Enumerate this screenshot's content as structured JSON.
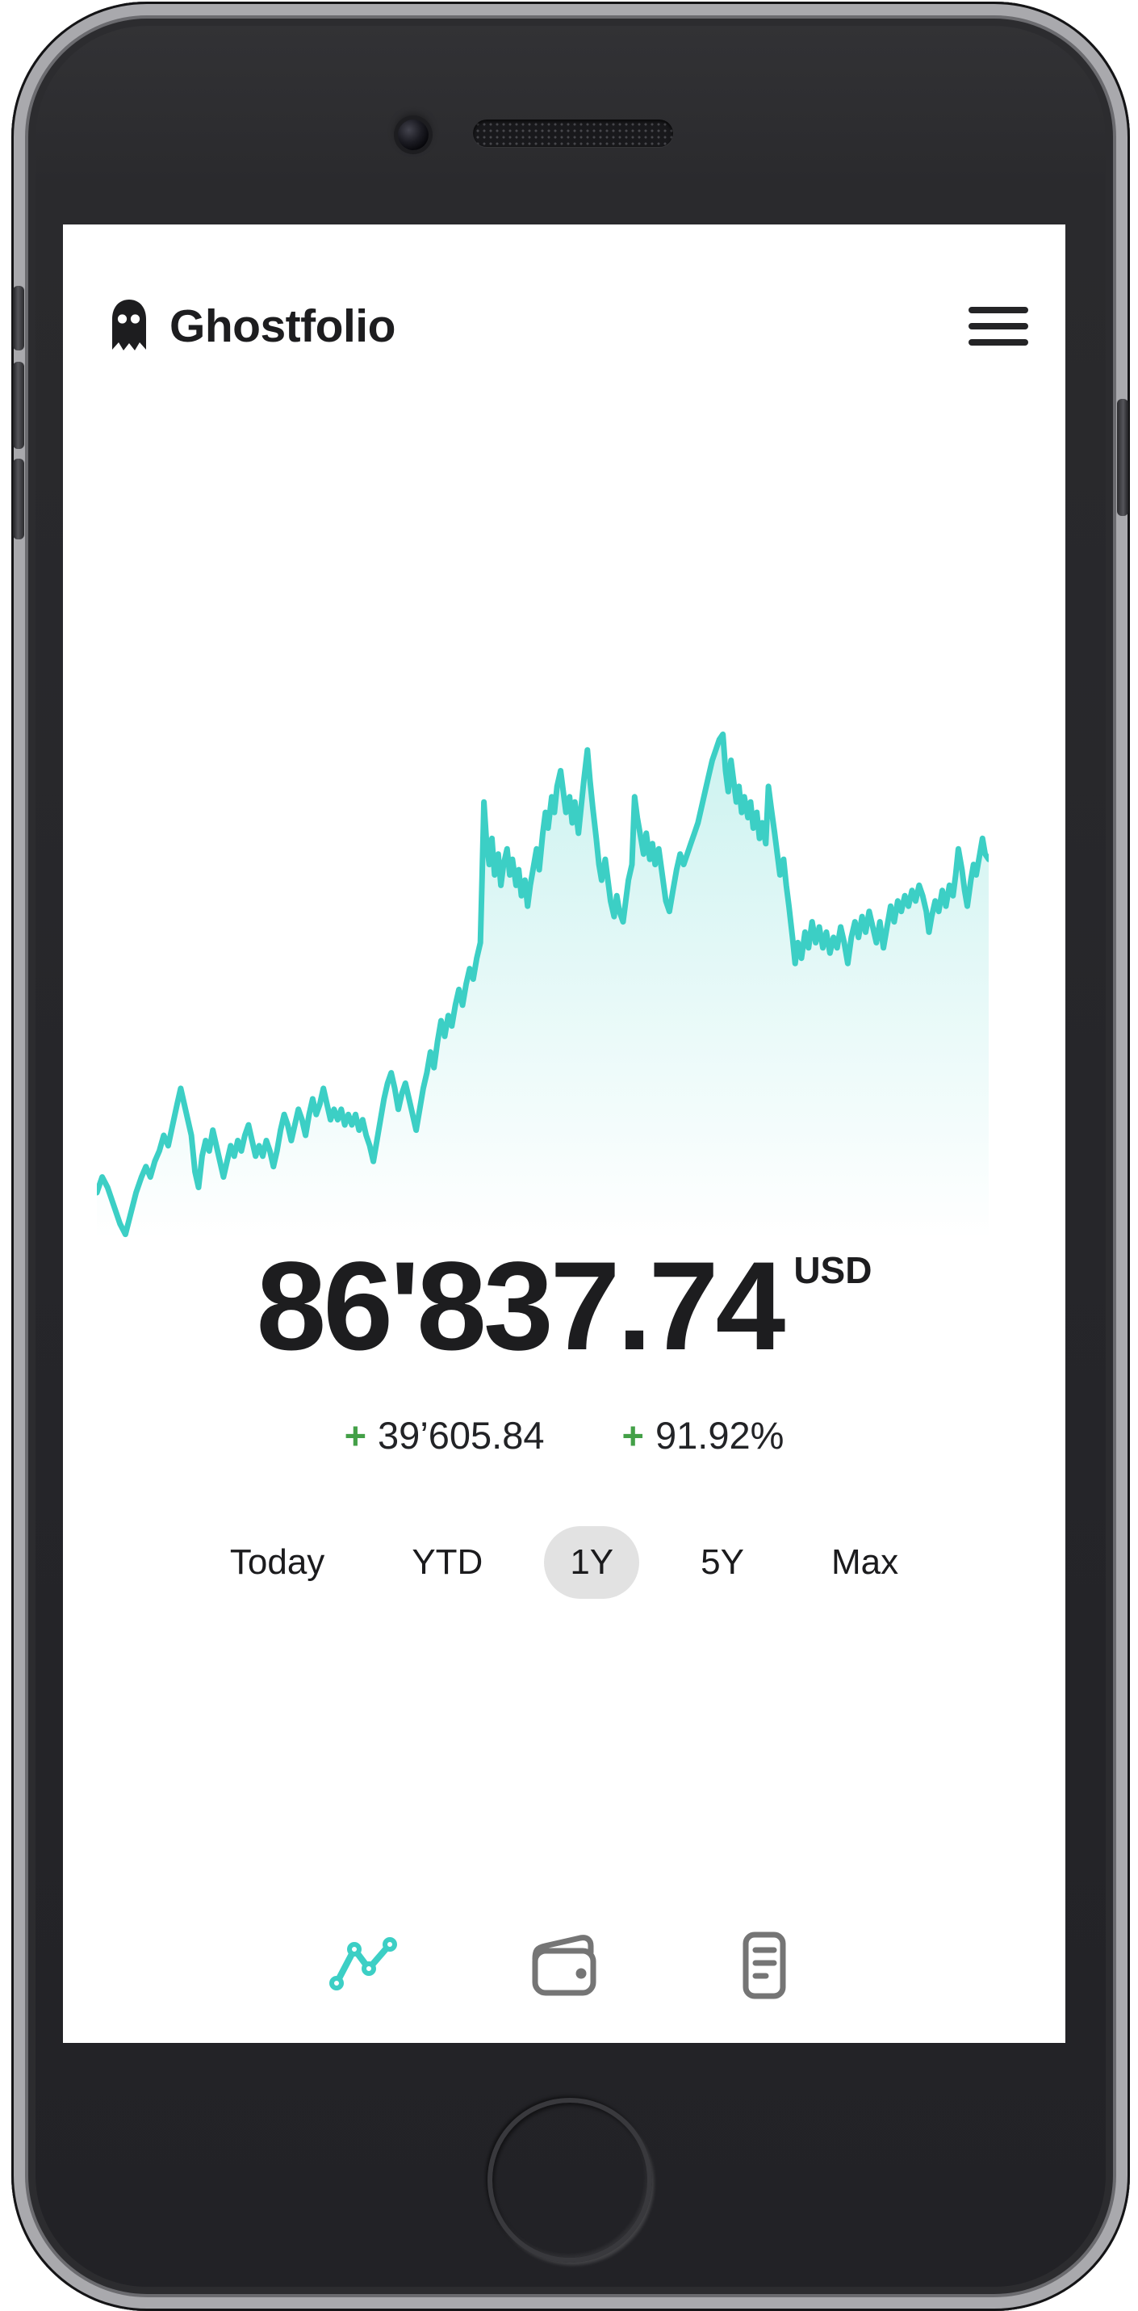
{
  "app": {
    "title": "Ghostfolio"
  },
  "balance": {
    "value": "86'837.74",
    "currency": "USD",
    "change": {
      "sign": "+",
      "absolute": "39’605.84",
      "percent": "91.92%"
    }
  },
  "periods": {
    "active": "1Y",
    "items": [
      {
        "label": "Today",
        "active": false
      },
      {
        "label": "YTD",
        "active": false
      },
      {
        "label": "1Y",
        "active": true
      },
      {
        "label": "5Y",
        "active": false
      },
      {
        "label": "Max",
        "active": false
      }
    ]
  },
  "nav": {
    "items": [
      {
        "icon": "line-chart-icon",
        "label": "performance",
        "active": true
      },
      {
        "icon": "wallet-icon",
        "label": "holdings",
        "active": false
      },
      {
        "icon": "transactions-icon",
        "label": "transactions",
        "active": false
      }
    ]
  },
  "colors": {
    "accent": "#3CCFC5",
    "positive": "#43A047",
    "text": "#1D1D1F",
    "pill_background": "#E2E2E2",
    "nav_inactive": "#757575"
  },
  "chart_data": {
    "type": "area",
    "title": "",
    "xlabel": "",
    "ylabel": "",
    "x_axis": "time, selected period 1Y (no tick labels shown)",
    "y_axis": "portfolio value in USD (no tick labels shown)",
    "grid": false,
    "legend": false,
    "line_color": "#3CCFC5",
    "fill_gradient_top": "rgba(60,207,197,0.26)",
    "fill_gradient_bottom": "rgba(60,207,197,0)",
    "end_value_label": "86'837.74 USD",
    "points_pct_note": "normalized polyline of the drawn curve; x 0-100 left to right, y 0-100 top to bottom",
    "points_pct": [
      [
        0,
        91
      ],
      [
        0.6,
        88
      ],
      [
        1.2,
        90
      ],
      [
        2,
        94
      ],
      [
        2.6,
        97
      ],
      [
        3.2,
        99
      ],
      [
        3.8,
        95
      ],
      [
        4.4,
        91
      ],
      [
        5,
        88
      ],
      [
        5.5,
        86
      ],
      [
        6,
        88
      ],
      [
        6.5,
        85
      ],
      [
        7,
        83
      ],
      [
        7.5,
        80
      ],
      [
        8,
        82
      ],
      [
        8.5,
        78
      ],
      [
        9,
        74
      ],
      [
        9.4,
        71
      ],
      [
        9.8,
        74
      ],
      [
        10.2,
        77
      ],
      [
        10.6,
        80
      ],
      [
        11,
        87
      ],
      [
        11.4,
        90
      ],
      [
        11.8,
        84
      ],
      [
        12.2,
        81
      ],
      [
        12.6,
        83
      ],
      [
        13,
        79
      ],
      [
        13.4,
        82
      ],
      [
        13.8,
        85
      ],
      [
        14.2,
        88
      ],
      [
        14.6,
        85
      ],
      [
        15,
        82
      ],
      [
        15.4,
        84
      ],
      [
        15.8,
        81
      ],
      [
        16.2,
        83
      ],
      [
        16.6,
        80
      ],
      [
        17,
        78
      ],
      [
        17.4,
        81
      ],
      [
        17.8,
        84
      ],
      [
        18.2,
        82
      ],
      [
        18.6,
        84
      ],
      [
        19,
        81
      ],
      [
        19.4,
        83
      ],
      [
        19.8,
        86
      ],
      [
        20.2,
        83
      ],
      [
        20.6,
        79
      ],
      [
        21,
        76
      ],
      [
        21.4,
        78
      ],
      [
        21.8,
        81
      ],
      [
        22.2,
        78
      ],
      [
        22.6,
        75
      ],
      [
        23,
        77
      ],
      [
        23.4,
        80
      ],
      [
        23.8,
        76
      ],
      [
        24.2,
        73
      ],
      [
        24.6,
        76
      ],
      [
        25,
        74
      ],
      [
        25.4,
        71
      ],
      [
        25.8,
        74
      ],
      [
        26.2,
        77
      ],
      [
        26.6,
        75
      ],
      [
        27,
        77
      ],
      [
        27.4,
        75
      ],
      [
        27.8,
        78
      ],
      [
        28.2,
        76
      ],
      [
        28.6,
        78
      ],
      [
        29,
        76
      ],
      [
        29.4,
        79
      ],
      [
        29.8,
        77
      ],
      [
        30.2,
        80
      ],
      [
        30.6,
        82
      ],
      [
        31,
        85
      ],
      [
        31.4,
        81
      ],
      [
        31.8,
        77
      ],
      [
        32.2,
        73
      ],
      [
        32.6,
        70
      ],
      [
        33,
        68
      ],
      [
        33.4,
        71
      ],
      [
        33.8,
        75
      ],
      [
        34.2,
        72
      ],
      [
        34.6,
        70
      ],
      [
        35,
        73
      ],
      [
        35.4,
        76
      ],
      [
        35.8,
        79
      ],
      [
        36.2,
        75
      ],
      [
        36.6,
        71
      ],
      [
        37,
        68
      ],
      [
        37.4,
        64
      ],
      [
        37.8,
        67
      ],
      [
        38.2,
        62
      ],
      [
        38.6,
        58
      ],
      [
        39,
        61
      ],
      [
        39.4,
        57
      ],
      [
        39.8,
        59
      ],
      [
        40.2,
        55
      ],
      [
        40.6,
        52
      ],
      [
        41,
        55
      ],
      [
        41.4,
        51
      ],
      [
        41.8,
        48
      ],
      [
        42.2,
        50
      ],
      [
        42.6,
        46
      ],
      [
        43,
        43
      ],
      [
        43.2,
        30
      ],
      [
        43.4,
        16
      ],
      [
        43.7,
        24
      ],
      [
        44,
        28
      ],
      [
        44.3,
        23
      ],
      [
        44.6,
        30
      ],
      [
        45,
        26
      ],
      [
        45.3,
        32
      ],
      [
        45.6,
        28
      ],
      [
        46,
        25
      ],
      [
        46.3,
        30
      ],
      [
        46.6,
        27
      ],
      [
        47,
        32
      ],
      [
        47.3,
        29
      ],
      [
        47.6,
        34
      ],
      [
        48,
        31
      ],
      [
        48.3,
        36
      ],
      [
        48.6,
        32
      ],
      [
        49,
        28
      ],
      [
        49.3,
        25
      ],
      [
        49.6,
        29
      ],
      [
        50,
        22
      ],
      [
        50.3,
        18
      ],
      [
        50.6,
        21
      ],
      [
        51,
        15
      ],
      [
        51.3,
        18
      ],
      [
        51.6,
        13
      ],
      [
        52,
        10
      ],
      [
        52.3,
        14
      ],
      [
        52.6,
        18
      ],
      [
        53,
        15
      ],
      [
        53.3,
        20
      ],
      [
        53.6,
        16
      ],
      [
        54,
        22
      ],
      [
        54.3,
        17
      ],
      [
        54.6,
        12
      ],
      [
        55,
        6
      ],
      [
        55.3,
        12
      ],
      [
        55.6,
        17
      ],
      [
        56,
        23
      ],
      [
        56.3,
        28
      ],
      [
        56.6,
        31
      ],
      [
        57,
        27
      ],
      [
        57.3,
        31
      ],
      [
        57.6,
        35
      ],
      [
        58,
        38
      ],
      [
        58.3,
        34
      ],
      [
        58.6,
        37
      ],
      [
        59,
        39
      ],
      [
        59.3,
        35
      ],
      [
        59.6,
        31
      ],
      [
        60,
        28
      ],
      [
        60.3,
        15
      ],
      [
        60.6,
        19
      ],
      [
        61,
        23
      ],
      [
        61.3,
        26
      ],
      [
        61.6,
        22
      ],
      [
        62,
        27
      ],
      [
        62.3,
        24
      ],
      [
        62.6,
        28
      ],
      [
        63,
        25
      ],
      [
        63.4,
        30
      ],
      [
        63.8,
        35
      ],
      [
        64.2,
        37
      ],
      [
        64.6,
        33
      ],
      [
        65,
        29
      ],
      [
        65.4,
        26
      ],
      [
        65.8,
        28
      ],
      [
        66.2,
        26
      ],
      [
        66.6,
        24
      ],
      [
        67,
        22
      ],
      [
        67.4,
        20
      ],
      [
        67.8,
        17
      ],
      [
        68.2,
        14
      ],
      [
        68.6,
        11
      ],
      [
        69,
        8
      ],
      [
        69.4,
        6
      ],
      [
        69.8,
        4
      ],
      [
        70.2,
        3
      ],
      [
        70.5,
        10
      ],
      [
        70.8,
        14
      ],
      [
        71.1,
        8
      ],
      [
        71.4,
        12
      ],
      [
        71.7,
        16
      ],
      [
        72,
        13
      ],
      [
        72.3,
        18
      ],
      [
        72.6,
        15
      ],
      [
        73,
        19
      ],
      [
        73.3,
        16
      ],
      [
        73.6,
        21
      ],
      [
        74,
        18
      ],
      [
        74.3,
        23
      ],
      [
        74.6,
        20
      ],
      [
        75,
        24
      ],
      [
        75.3,
        13
      ],
      [
        75.6,
        17
      ],
      [
        76,
        22
      ],
      [
        76.3,
        26
      ],
      [
        76.6,
        30
      ],
      [
        77,
        27
      ],
      [
        77.3,
        32
      ],
      [
        77.6,
        36
      ],
      [
        78,
        42
      ],
      [
        78.3,
        47
      ],
      [
        78.6,
        43
      ],
      [
        79,
        46
      ],
      [
        79.4,
        41
      ],
      [
        79.8,
        44
      ],
      [
        80.2,
        39
      ],
      [
        80.6,
        43
      ],
      [
        81,
        40
      ],
      [
        81.4,
        44
      ],
      [
        81.8,
        41
      ],
      [
        82.2,
        45
      ],
      [
        82.6,
        42
      ],
      [
        83,
        44
      ],
      [
        83.4,
        40
      ],
      [
        83.8,
        43
      ],
      [
        84.2,
        47
      ],
      [
        84.6,
        42
      ],
      [
        85,
        39
      ],
      [
        85.4,
        42
      ],
      [
        85.8,
        38
      ],
      [
        86.2,
        41
      ],
      [
        86.6,
        37
      ],
      [
        87,
        40
      ],
      [
        87.4,
        43
      ],
      [
        87.8,
        39
      ],
      [
        88.2,
        44
      ],
      [
        88.6,
        40
      ],
      [
        89,
        36
      ],
      [
        89.4,
        39
      ],
      [
        89.8,
        35
      ],
      [
        90.2,
        37
      ],
      [
        90.6,
        34
      ],
      [
        91,
        36
      ],
      [
        91.4,
        33
      ],
      [
        91.8,
        35
      ],
      [
        92.2,
        32
      ],
      [
        92.6,
        34
      ],
      [
        93,
        37
      ],
      [
        93.3,
        41
      ],
      [
        93.6,
        38
      ],
      [
        94,
        35
      ],
      [
        94.4,
        37
      ],
      [
        94.8,
        33
      ],
      [
        95.2,
        36
      ],
      [
        95.6,
        32
      ],
      [
        96,
        34
      ],
      [
        96.3,
        30
      ],
      [
        96.6,
        25
      ],
      [
        97,
        29
      ],
      [
        97.3,
        33
      ],
      [
        97.6,
        36
      ],
      [
        98,
        31
      ],
      [
        98.3,
        28
      ],
      [
        98.6,
        30
      ],
      [
        99,
        26
      ],
      [
        99.3,
        23
      ],
      [
        99.6,
        26
      ],
      [
        100,
        27
      ]
    ]
  }
}
